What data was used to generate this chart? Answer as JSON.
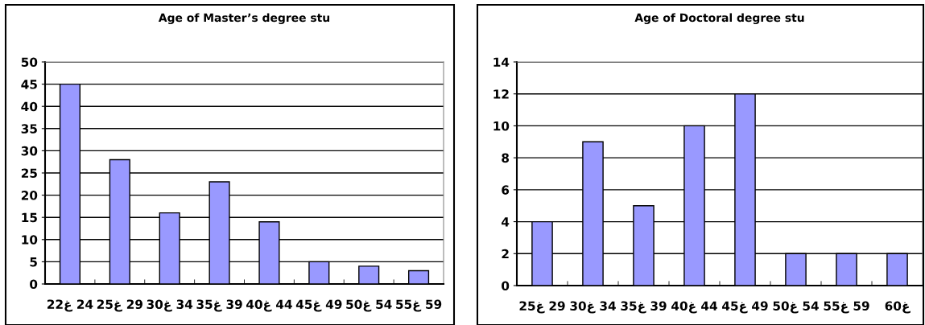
{
  "chart_data": [
    {
      "type": "bar",
      "title": "Age of Master’s degree stu",
      "categories": [
        "22غ 24",
        "25غ 29",
        "30غ 34",
        "35غ 39",
        "40غ 44",
        "45غ 49",
        "50غ 54",
        "55غ 59"
      ],
      "values": [
        45,
        28,
        16,
        23,
        14,
        5,
        4,
        3
      ],
      "color": "#9999ff",
      "ylim": [
        0,
        50
      ],
      "yticks": [
        0,
        5,
        10,
        15,
        20,
        25,
        30,
        35,
        40,
        45,
        50
      ],
      "grid": "y"
    },
    {
      "type": "bar",
      "title": "Age of Doctoral degree stu",
      "categories": [
        "25غ 29",
        "30غ 34",
        "35غ 39",
        "40غ 44",
        "45غ 49",
        "50غ 54",
        "55غ 59",
        "60غ"
      ],
      "values": [
        4,
        9,
        5,
        10,
        12,
        2,
        2,
        2
      ],
      "color": "#9999ff",
      "ylim": [
        0,
        14
      ],
      "yticks": [
        0,
        2,
        4,
        6,
        8,
        10,
        12,
        14
      ],
      "grid": "y"
    }
  ]
}
